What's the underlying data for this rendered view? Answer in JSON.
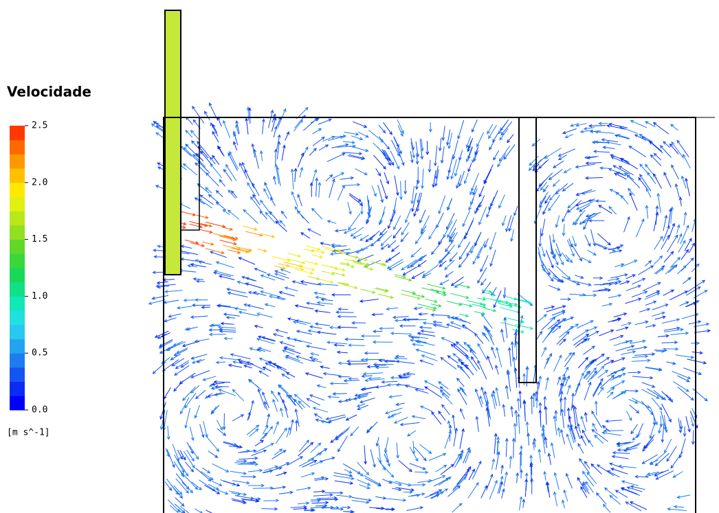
{
  "legend": {
    "title": "Velocidade",
    "unit": "[m  s^-1]",
    "clim": [
      0,
      2.5
    ],
    "ticks": [
      {
        "value": 0,
        "label": "0.0"
      },
      0.5,
      {
        "value": 1,
        "label": "1.0"
      },
      1.5,
      {
        "value": 2,
        "label": "2.0"
      },
      2.5
    ],
    "colors": [
      "#0000ff",
      "#0a2cf5",
      "#1554f0",
      "#1e7cf0",
      "#24a4f0",
      "#28c8f0",
      "#20e0e0",
      "#10e8b8",
      "#10e088",
      "#18d858",
      "#38d838",
      "#60d828",
      "#90e020",
      "#b8e818",
      "#e0f010",
      "#ffe800",
      "#ffc000",
      "#ff9800",
      "#ff6800",
      "#ff3800"
    ]
  }
}
